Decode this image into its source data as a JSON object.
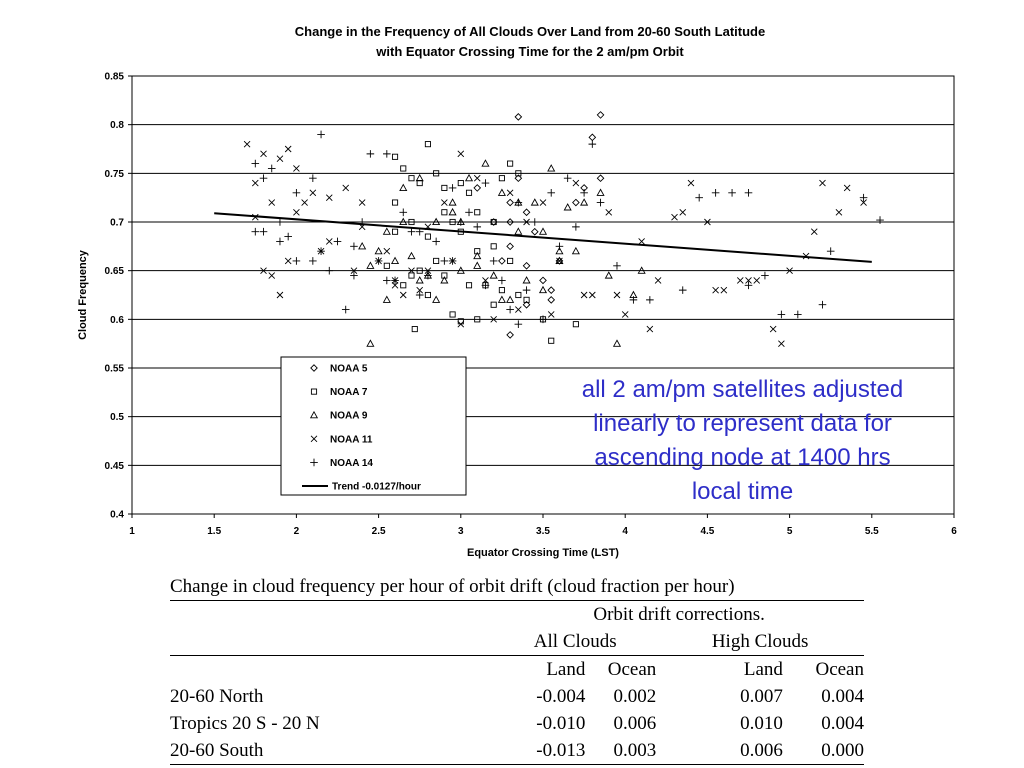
{
  "chart_data": {
    "type": "scatter",
    "title_lines": [
      "Change in the Frequency of All Clouds Over Land from 20-60 South Latitude",
      "with Equator Crossing Time for the 2 am/pm Orbit"
    ],
    "xlabel": "Equator Crossing Time (LST)",
    "ylabel": "Cloud Frequency",
    "xlim": [
      1,
      6
    ],
    "ylim": [
      0.4,
      0.85
    ],
    "x_ticks": [
      "1",
      "1.5",
      "2",
      "2.5",
      "3",
      "3.5",
      "4",
      "4.5",
      "5",
      "5.5",
      "6"
    ],
    "y_ticks": [
      "0.4",
      "0.45",
      "0.5",
      "0.55",
      "0.6",
      "0.65",
      "0.7",
      "0.75",
      "0.8",
      "0.85"
    ],
    "grid": "horizontal",
    "legend_position": "bottom-left",
    "trend": {
      "name": "Trend -0.0127/hour",
      "x": [
        1.5,
        5.5
      ],
      "y": [
        0.709,
        0.659
      ]
    },
    "series": [
      {
        "name": "NOAA 5",
        "marker": "diamond",
        "x": [
          3.1,
          3.2,
          3.25,
          3.3,
          3.35,
          3.4,
          3.45,
          3.35,
          3.3,
          3.4,
          3.5,
          3.55,
          3.6,
          3.7,
          3.75,
          3.8,
          3.85,
          3.85,
          3.3,
          3.4,
          3.55,
          3.3
        ],
        "y": [
          0.735,
          0.7,
          0.66,
          0.72,
          0.745,
          0.71,
          0.69,
          0.808,
          0.675,
          0.655,
          0.64,
          0.63,
          0.66,
          0.72,
          0.735,
          0.787,
          0.81,
          0.745,
          0.584,
          0.615,
          0.62,
          0.7
        ]
      },
      {
        "name": "NOAA 7",
        "marker": "square",
        "x": [
          2.6,
          2.65,
          2.7,
          2.75,
          2.8,
          2.85,
          2.9,
          2.95,
          3.0,
          3.05,
          3.1,
          3.2,
          3.25,
          3.3,
          3.35,
          2.6,
          2.7,
          2.8,
          2.9,
          3.0,
          3.1,
          3.2,
          3.3,
          2.7,
          2.75,
          2.85,
          3.05,
          3.15,
          3.4,
          3.55,
          3.7,
          2.55,
          2.65,
          2.8,
          2.95,
          3.1,
          3.25,
          2.6,
          2.72,
          2.9,
          3.0,
          3.2,
          3.35,
          3.5
        ],
        "y": [
          0.767,
          0.755,
          0.745,
          0.74,
          0.78,
          0.75,
          0.735,
          0.7,
          0.74,
          0.73,
          0.71,
          0.7,
          0.745,
          0.76,
          0.75,
          0.72,
          0.7,
          0.685,
          0.71,
          0.69,
          0.67,
          0.675,
          0.66,
          0.645,
          0.65,
          0.66,
          0.635,
          0.635,
          0.62,
          0.578,
          0.595,
          0.655,
          0.635,
          0.625,
          0.605,
          0.6,
          0.63,
          0.69,
          0.59,
          0.645,
          0.598,
          0.615,
          0.625,
          0.6
        ]
      },
      {
        "name": "NOAA 9",
        "marker": "triangle",
        "x": [
          2.4,
          2.45,
          2.55,
          2.65,
          2.75,
          2.85,
          2.95,
          3.05,
          3.15,
          3.25,
          3.35,
          3.45,
          3.55,
          3.65,
          3.75,
          3.85,
          2.5,
          2.6,
          2.7,
          2.8,
          2.9,
          3.0,
          3.1,
          3.2,
          3.3,
          3.4,
          3.5,
          3.6,
          3.7,
          2.45,
          2.55,
          2.75,
          2.85,
          3.0,
          3.25,
          3.35,
          3.6,
          3.9,
          4.05,
          3.95,
          4.1,
          2.65,
          2.95,
          3.1,
          3.5
        ],
        "y": [
          0.675,
          0.655,
          0.69,
          0.735,
          0.745,
          0.7,
          0.72,
          0.745,
          0.76,
          0.73,
          0.72,
          0.72,
          0.755,
          0.715,
          0.72,
          0.73,
          0.67,
          0.66,
          0.665,
          0.645,
          0.64,
          0.65,
          0.665,
          0.645,
          0.62,
          0.64,
          0.63,
          0.66,
          0.67,
          0.575,
          0.62,
          0.64,
          0.62,
          0.7,
          0.62,
          0.69,
          0.67,
          0.645,
          0.625,
          0.575,
          0.65,
          0.7,
          0.71,
          0.655,
          0.69
        ]
      },
      {
        "name": "NOAA 11",
        "marker": "x",
        "x": [
          1.7,
          1.75,
          1.8,
          1.85,
          1.9,
          1.95,
          2.0,
          2.05,
          2.1,
          2.2,
          2.3,
          2.4,
          2.5,
          2.6,
          2.7,
          2.8,
          2.9,
          3.0,
          3.1,
          3.3,
          3.5,
          3.7,
          3.9,
          4.1,
          4.3,
          4.5,
          4.7,
          4.9,
          5.1,
          5.3,
          1.75,
          1.85,
          1.95,
          2.15,
          2.35,
          2.55,
          2.75,
          2.95,
          3.15,
          3.35,
          3.55,
          3.75,
          3.95,
          4.15,
          4.35,
          4.55,
          4.75,
          4.95,
          5.15,
          5.35,
          1.8,
          1.9,
          2.0,
          2.2,
          2.4,
          2.6,
          2.65,
          2.8,
          3.0,
          3.2,
          3.4,
          3.6,
          3.8,
          4.0,
          4.2,
          4.4,
          4.6,
          4.8,
          5.0,
          5.2,
          5.45
        ],
        "y": [
          0.78,
          0.74,
          0.77,
          0.72,
          0.765,
          0.775,
          0.755,
          0.72,
          0.73,
          0.725,
          0.735,
          0.72,
          0.66,
          0.635,
          0.65,
          0.695,
          0.72,
          0.77,
          0.745,
          0.73,
          0.72,
          0.74,
          0.71,
          0.68,
          0.705,
          0.7,
          0.64,
          0.59,
          0.665,
          0.71,
          0.705,
          0.645,
          0.66,
          0.67,
          0.65,
          0.67,
          0.63,
          0.66,
          0.64,
          0.61,
          0.605,
          0.625,
          0.625,
          0.59,
          0.71,
          0.63,
          0.64,
          0.575,
          0.69,
          0.735,
          0.65,
          0.625,
          0.71,
          0.68,
          0.695,
          0.64,
          0.625,
          0.65,
          0.595,
          0.6,
          0.7,
          0.66,
          0.625,
          0.605,
          0.64,
          0.74,
          0.63,
          0.64,
          0.65,
          0.74,
          0.72
        ]
      },
      {
        "name": "NOAA 14",
        "marker": "plus",
        "x": [
          1.75,
          1.8,
          1.85,
          1.9,
          2.0,
          2.1,
          2.15,
          2.25,
          2.35,
          2.45,
          2.55,
          2.65,
          2.75,
          2.85,
          2.95,
          3.05,
          3.15,
          3.25,
          3.35,
          3.45,
          3.55,
          3.65,
          3.75,
          3.85,
          3.95,
          4.05,
          4.15,
          4.45,
          4.55,
          4.65,
          4.75,
          4.85,
          5.05,
          5.25,
          5.45,
          5.55,
          1.8,
          1.9,
          2.0,
          2.1,
          2.2,
          2.3,
          2.4,
          2.5,
          2.6,
          2.7,
          2.8,
          2.9,
          3.0,
          3.1,
          3.2,
          3.3,
          3.4,
          3.5,
          3.6,
          3.7,
          3.8,
          1.75,
          1.95,
          2.15,
          2.35,
          2.55,
          2.75,
          2.95,
          3.15,
          3.35,
          4.35,
          4.75,
          4.95,
          5.2
        ],
        "y": [
          0.76,
          0.745,
          0.755,
          0.7,
          0.73,
          0.745,
          0.79,
          0.68,
          0.675,
          0.77,
          0.77,
          0.71,
          0.69,
          0.68,
          0.735,
          0.71,
          0.74,
          0.64,
          0.72,
          0.7,
          0.73,
          0.745,
          0.73,
          0.72,
          0.655,
          0.62,
          0.62,
          0.725,
          0.73,
          0.73,
          0.73,
          0.645,
          0.605,
          0.67,
          0.725,
          0.702,
          0.69,
          0.68,
          0.66,
          0.66,
          0.65,
          0.61,
          0.7,
          0.66,
          0.64,
          0.69,
          0.645,
          0.66,
          0.7,
          0.695,
          0.66,
          0.61,
          0.63,
          0.6,
          0.675,
          0.695,
          0.78,
          0.69,
          0.685,
          0.67,
          0.645,
          0.64,
          0.625,
          0.66,
          0.635,
          0.595,
          0.63,
          0.635,
          0.605,
          0.615
        ]
      }
    ]
  },
  "annotation_lines": [
    "all 2 am/pm satellites adjusted",
    "linearly to represent data for",
    "ascending node at 1400 hrs",
    "local time"
  ],
  "table": {
    "caption": "Change in cloud frequency per hour of orbit drift (cloud fraction per hour)",
    "subheader": "Orbit drift corrections.",
    "group_all": "All Clouds",
    "group_high": "High Clouds",
    "col_land": "Land",
    "col_ocean": "Ocean",
    "rows": [
      {
        "region": "20-60 North",
        "all_land": "-0.004",
        "all_ocean": "0.002",
        "high_land": "0.007",
        "high_ocean": "0.004"
      },
      {
        "region": "Tropics 20 S - 20 N",
        "all_land": "-0.010",
        "all_ocean": "0.006",
        "high_land": "0.010",
        "high_ocean": "0.004"
      },
      {
        "region": "20-60 South",
        "all_land": "-0.013",
        "all_ocean": "0.003",
        "high_land": "0.006",
        "high_ocean": "0.000"
      }
    ]
  }
}
